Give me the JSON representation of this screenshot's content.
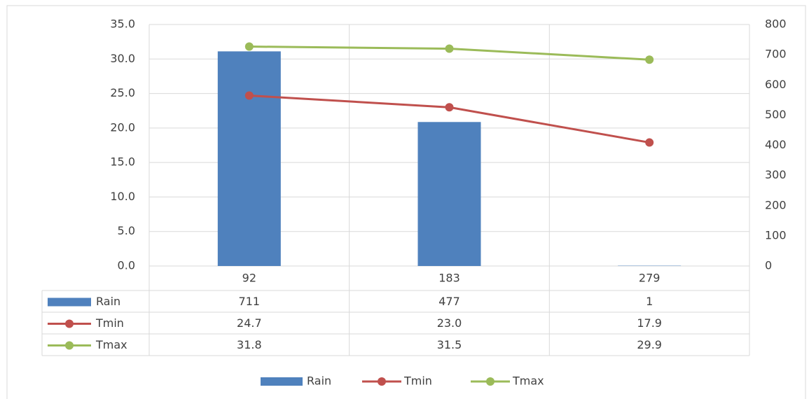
{
  "chart_data": {
    "type": "bar",
    "categories": [
      "92",
      "183",
      "279"
    ],
    "series": [
      {
        "name": "Rain",
        "type": "bar",
        "color": "#4f81bd",
        "axis": "y2",
        "values": [
          711,
          477,
          1
        ]
      },
      {
        "name": "Tmin",
        "type": "line",
        "color": "#c0504d",
        "values": [
          24.7,
          23.0,
          17.9
        ],
        "value_labels": [
          "24.7",
          "23.0",
          "17.9"
        ]
      },
      {
        "name": "Tmax",
        "type": "line",
        "color": "#9bbb59",
        "values": [
          31.8,
          31.5,
          29.9
        ],
        "value_labels": [
          "31.8",
          "31.5",
          "29.9"
        ]
      }
    ],
    "ylim": [
      0,
      35
    ],
    "yticks": [
      {
        "value": 0,
        "label": "0.0"
      },
      {
        "value": 5,
        "label": "5.0"
      },
      {
        "value": 10,
        "label": "10.0"
      },
      {
        "value": 15,
        "label": "15.0"
      },
      {
        "value": 20,
        "label": "20.0"
      },
      {
        "value": 25,
        "label": "25.0"
      },
      {
        "value": 30,
        "label": "30.0"
      },
      {
        "value": 35,
        "label": "35.0"
      }
    ],
    "y2lim": [
      0,
      800
    ],
    "y2ticks": [
      0,
      100,
      200,
      300,
      400,
      500,
      600,
      700,
      800
    ],
    "grid": true,
    "data_table": true,
    "legend": "bottom"
  }
}
